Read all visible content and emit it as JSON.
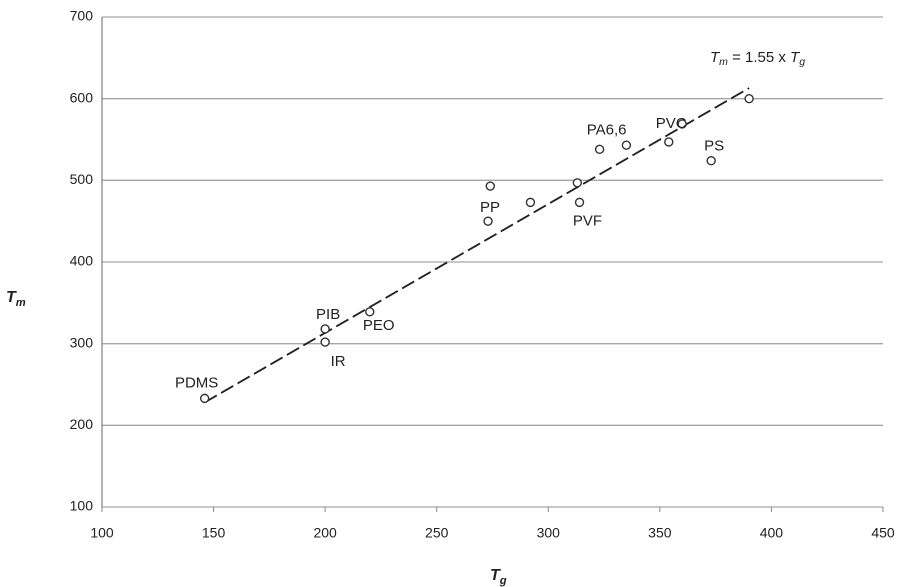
{
  "chart_data": {
    "type": "scatter",
    "xlabel": {
      "main": "T",
      "sub": "g"
    },
    "ylabel": {
      "main": "T",
      "sub": "m"
    },
    "annotation": {
      "lhs": {
        "main": "T",
        "sub": "m"
      },
      "text": " = 1.55 x ",
      "rhs": {
        "main": "T",
        "sub": "g"
      }
    },
    "x": [
      146,
      200,
      200,
      220,
      273,
      274,
      292,
      314,
      313,
      323,
      335,
      354,
      360,
      373,
      390
    ],
    "y": [
      233,
      318,
      302,
      339,
      450,
      493,
      473,
      473,
      497,
      538,
      543,
      547,
      569,
      524,
      600
    ],
    "labels": [
      "PDMS",
      "PIB",
      "IR",
      "PEO",
      "PP",
      null,
      null,
      "PVF",
      null,
      "PA6,6",
      null,
      null,
      "PVC",
      "PS",
      null
    ],
    "fit": {
      "x": [
        146,
        390
      ],
      "y": [
        228,
        613
      ]
    },
    "xlim": [
      100,
      450
    ],
    "xticks": [
      100,
      150,
      200,
      250,
      300,
      350,
      400,
      450
    ],
    "ylim": [
      100,
      700
    ],
    "yticks": [
      100,
      200,
      300,
      400,
      500,
      600,
      700
    ],
    "grid": true,
    "color": "#333333"
  }
}
